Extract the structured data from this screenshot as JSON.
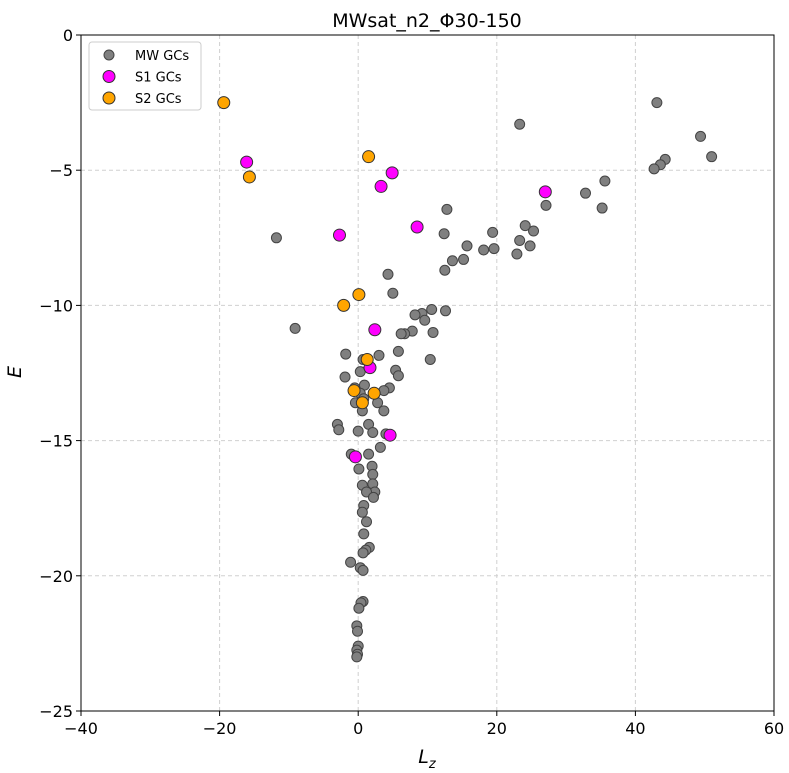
{
  "chart_data": {
    "type": "scatter",
    "title": "MWsat_n2_Φ30-150",
    "xlabel_main": "L",
    "xlabel_sub": "z",
    "ylabel": "E",
    "xlim": [
      -40,
      60
    ],
    "ylim": [
      -25,
      0
    ],
    "xticks": [
      -40,
      -20,
      0,
      20,
      40,
      60
    ],
    "yticks": [
      0,
      -5,
      -10,
      -15,
      -20,
      -25
    ],
    "grid": true,
    "legend_position": "upper-left",
    "series": [
      {
        "name": "MW GCs",
        "color": "#808080",
        "edge": "#444444",
        "points": [
          [
            43.1,
            -2.5
          ],
          [
            23.3,
            -3.3
          ],
          [
            49.4,
            -3.75
          ],
          [
            44.3,
            -4.6
          ],
          [
            43.6,
            -4.8
          ],
          [
            51.0,
            -4.5
          ],
          [
            42.7,
            -4.95
          ],
          [
            35.6,
            -5.4
          ],
          [
            32.8,
            -5.85
          ],
          [
            35.2,
            -6.4
          ],
          [
            27.1,
            -6.3
          ],
          [
            12.8,
            -6.45
          ],
          [
            12.4,
            -7.35
          ],
          [
            19.4,
            -7.3
          ],
          [
            24.1,
            -7.05
          ],
          [
            25.3,
            -7.25
          ],
          [
            23.3,
            -7.6
          ],
          [
            15.7,
            -7.8
          ],
          [
            18.1,
            -7.95
          ],
          [
            19.6,
            -7.9
          ],
          [
            24.8,
            -7.8
          ],
          [
            22.9,
            -8.1
          ],
          [
            15.2,
            -8.3
          ],
          [
            13.6,
            -8.35
          ],
          [
            12.5,
            -8.7
          ],
          [
            -11.8,
            -7.5
          ],
          [
            4.3,
            -8.85
          ],
          [
            5.0,
            -9.55
          ],
          [
            12.6,
            -10.2
          ],
          [
            10.6,
            -10.15
          ],
          [
            9.2,
            -10.3
          ],
          [
            8.2,
            -10.35
          ],
          [
            9.6,
            -10.55
          ],
          [
            7.8,
            -10.95
          ],
          [
            6.7,
            -11.05
          ],
          [
            6.2,
            -11.05
          ],
          [
            10.8,
            -11.0
          ],
          [
            -9.1,
            -10.85
          ],
          [
            5.8,
            -11.7
          ],
          [
            3.0,
            -11.85
          ],
          [
            10.4,
            -12.0
          ],
          [
            -1.8,
            -11.8
          ],
          [
            0.7,
            -12.0
          ],
          [
            0.3,
            -12.45
          ],
          [
            5.4,
            -12.4
          ],
          [
            5.8,
            -12.6
          ],
          [
            -1.9,
            -12.65
          ],
          [
            0.9,
            -12.95
          ],
          [
            -0.5,
            -13.05
          ],
          [
            4.5,
            -13.05
          ],
          [
            3.7,
            -13.15
          ],
          [
            0.3,
            -13.25
          ],
          [
            0.8,
            -13.45
          ],
          [
            -0.4,
            -13.6
          ],
          [
            2.8,
            -13.6
          ],
          [
            0.6,
            -13.9
          ],
          [
            3.7,
            -13.9
          ],
          [
            -3.0,
            -14.4
          ],
          [
            -2.8,
            -14.6
          ],
          [
            1.5,
            -14.4
          ],
          [
            0.0,
            -14.65
          ],
          [
            2.1,
            -14.7
          ],
          [
            4.0,
            -14.75
          ],
          [
            3.2,
            -15.25
          ],
          [
            1.5,
            -15.5
          ],
          [
            -1.0,
            -15.5
          ],
          [
            2.0,
            -15.95
          ],
          [
            0.1,
            -16.05
          ],
          [
            2.1,
            -16.25
          ],
          [
            2.1,
            -16.6
          ],
          [
            0.6,
            -16.65
          ],
          [
            2.4,
            -16.9
          ],
          [
            1.2,
            -16.9
          ],
          [
            2.2,
            -17.1
          ],
          [
            0.8,
            -17.4
          ],
          [
            0.6,
            -17.65
          ],
          [
            1.2,
            -18.0
          ],
          [
            0.8,
            -18.45
          ],
          [
            1.6,
            -18.95
          ],
          [
            1.1,
            -19.05
          ],
          [
            0.7,
            -19.15
          ],
          [
            -1.1,
            -19.5
          ],
          [
            0.3,
            -19.7
          ],
          [
            0.7,
            -19.8
          ],
          [
            0.7,
            -20.95
          ],
          [
            0.4,
            -21.0
          ],
          [
            0.1,
            -21.2
          ],
          [
            -0.2,
            -21.85
          ],
          [
            -0.1,
            -22.05
          ],
          [
            0.0,
            -22.6
          ],
          [
            -0.2,
            -22.75
          ],
          [
            -0.1,
            -22.9
          ],
          [
            -0.2,
            -23.0
          ]
        ]
      },
      {
        "name": "S1 GCs",
        "color": "#ff00ff",
        "edge": "#333333",
        "points": [
          [
            -16.1,
            -4.7
          ],
          [
            4.9,
            -5.1
          ],
          [
            3.3,
            -5.6
          ],
          [
            27.0,
            -5.8
          ],
          [
            8.5,
            -7.1
          ],
          [
            -2.7,
            -7.4
          ],
          [
            2.4,
            -10.9
          ],
          [
            1.7,
            -12.3
          ],
          [
            4.6,
            -14.8
          ],
          [
            -0.4,
            -15.6
          ]
        ]
      },
      {
        "name": "S2 GCs",
        "color": "#ffa500",
        "edge": "#333333",
        "points": [
          [
            -19.4,
            -2.5
          ],
          [
            1.5,
            -4.5
          ],
          [
            -15.7,
            -5.25
          ],
          [
            0.1,
            -9.6
          ],
          [
            -2.1,
            -10.0
          ],
          [
            1.3,
            -12.0
          ],
          [
            -0.6,
            -13.15
          ],
          [
            2.3,
            -13.25
          ],
          [
            0.6,
            -13.6
          ]
        ]
      }
    ]
  }
}
